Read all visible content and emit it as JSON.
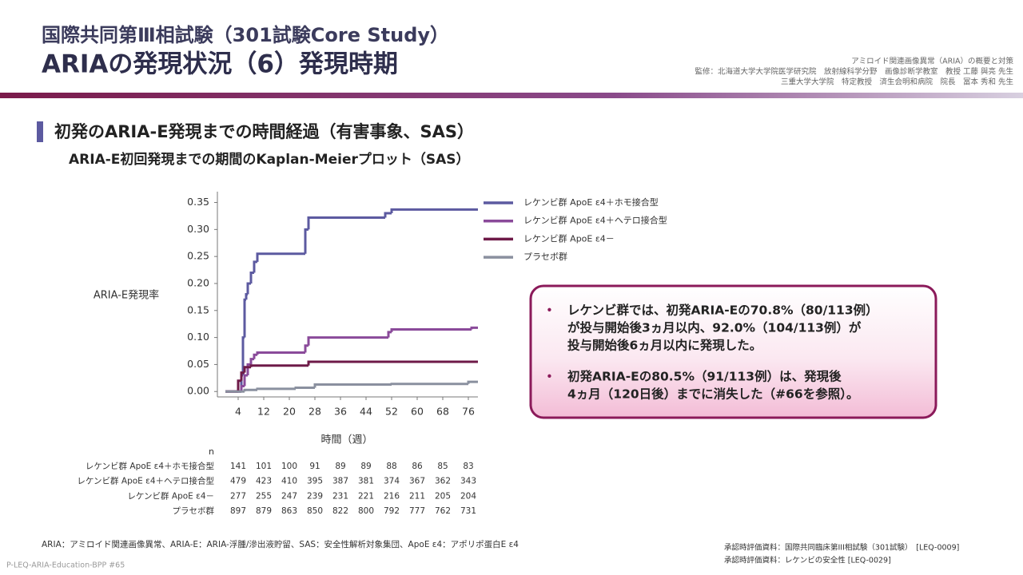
{
  "header": {
    "title_line1": "国際共同第Ⅲ相試験（301試験Core Study）",
    "title_line2": "ARIAの発現状況（6）発現時期",
    "credits": [
      "アミロイド関連画像異常（ARIA）の概要と対策",
      "監修：北海道大学大学院医学研究院　放射線科学分野　画像診断学教室　教授 工藤 與亮 先生",
      "三重大学大学院　特定教授　済生会明和病院　院長　冨本 秀和 先生"
    ]
  },
  "section": {
    "heading": "初発のARIA-E発現までの時間経過（有害事象、SAS）",
    "subheading": "ARIA-E初回発現までの期間のKaplan-Meierプロット（SAS）"
  },
  "chart_data": {
    "type": "step",
    "xlabel": "時間（週）",
    "ylabel": "ARIA-E発現率",
    "xlim": [
      -2.5,
      79
    ],
    "ylim": [
      -0.01,
      0.37
    ],
    "xticks": [
      4,
      12,
      20,
      28,
      36,
      44,
      52,
      60,
      68,
      76
    ],
    "yticks": [
      {
        "value": 0,
        "label": "0.00"
      },
      {
        "value": 0.05,
        "label": "0.05"
      },
      {
        "value": 0.1,
        "label": "0.10"
      },
      {
        "value": 0.15,
        "label": "0.15"
      },
      {
        "value": 0.2,
        "label": "0.20"
      },
      {
        "value": 0.25,
        "label": "0.25"
      },
      {
        "value": 0.3,
        "label": "0.30"
      },
      {
        "value": 0.35,
        "label": "0.35"
      }
    ],
    "series": [
      {
        "name": "レケンビ群 ApoE ε4＋ホモ接合型",
        "color": "#5c5aa0",
        "x": [
          0,
          4,
          5,
          5.5,
          6,
          6.5,
          7,
          8,
          9,
          10,
          25,
          26,
          50,
          52,
          79
        ],
        "values": [
          0,
          0,
          0.03,
          0.1,
          0.17,
          0.18,
          0.2,
          0.22,
          0.24,
          0.255,
          0.3,
          0.322,
          0.33,
          0.337,
          0.337
        ]
      },
      {
        "name": "レケンビ群 ApoE ε4＋ヘテロ接合型",
        "color": "#8a4a9a",
        "x": [
          0,
          4,
          5,
          6,
          7,
          8,
          9,
          10,
          25,
          26,
          51,
          52,
          77,
          79
        ],
        "values": [
          0,
          0,
          0.01,
          0.03,
          0.05,
          0.06,
          0.068,
          0.072,
          0.085,
          0.1,
          0.11,
          0.115,
          0.118,
          0.118
        ]
      },
      {
        "name": "レケンビ群 ApoE ε4－",
        "color": "#6e1a48",
        "x": [
          0,
          3,
          4,
          5,
          6,
          8,
          26,
          79
        ],
        "values": [
          0,
          0,
          0.02,
          0.035,
          0.045,
          0.048,
          0.055,
          0.055
        ]
      },
      {
        "name": "プラセボ群",
        "color": "#8a909f",
        "x": [
          0,
          5,
          6,
          10,
          22,
          28,
          52,
          76,
          79
        ],
        "values": [
          0,
          0,
          0.003,
          0.005,
          0.007,
          0.013,
          0.014,
          0.018,
          0.018
        ]
      }
    ],
    "risk_table": {
      "header": "n",
      "rows": [
        {
          "label": "レケンビ群 ApoE ε4＋ホモ接合型",
          "values": [
            141,
            101,
            100,
            91,
            89,
            89,
            88,
            86,
            85,
            83
          ]
        },
        {
          "label": "レケンビ群 ApoE ε4＋ヘテロ接合型",
          "values": [
            479,
            423,
            410,
            395,
            387,
            381,
            374,
            367,
            362,
            343
          ]
        },
        {
          "label": "レケンビ群 ApoE ε4－",
          "values": [
            277,
            255,
            247,
            239,
            231,
            221,
            216,
            211,
            205,
            204
          ]
        },
        {
          "label": "プラセボ群",
          "values": [
            897,
            879,
            863,
            850,
            822,
            800,
            792,
            777,
            762,
            731
          ]
        }
      ]
    }
  },
  "callout": {
    "bullets": [
      {
        "lines": [
          "レケンビ群では、初発ARIA-Eの70.8%（80/113例）",
          "が投与開始後3ヵ月以内、92.0%（104/113例）が",
          "投与開始後6ヵ月以内に発現した。"
        ]
      },
      {
        "lines": [
          "初発ARIA-Eの80.5%（91/113例）は、発現後",
          "4ヵ月（120日後）までに消失した（#66を参照）。"
        ]
      }
    ]
  },
  "footer": {
    "footnote": "ARIA：アミロイド関連画像異常、ARIA-E：ARIA-浮腫/滲出液貯留、SAS：安全性解析対象集団、ApoE ε4：アポリポ蛋白E ε4",
    "code": "P-LEQ-ARIA-Education-BPP #65",
    "references": [
      "承認時評価資料：国際共同臨床第III相試験（301試験）　[LEQ-0009]",
      "承認時評価資料：レケンビの安全性 [LEQ-0029]"
    ]
  }
}
